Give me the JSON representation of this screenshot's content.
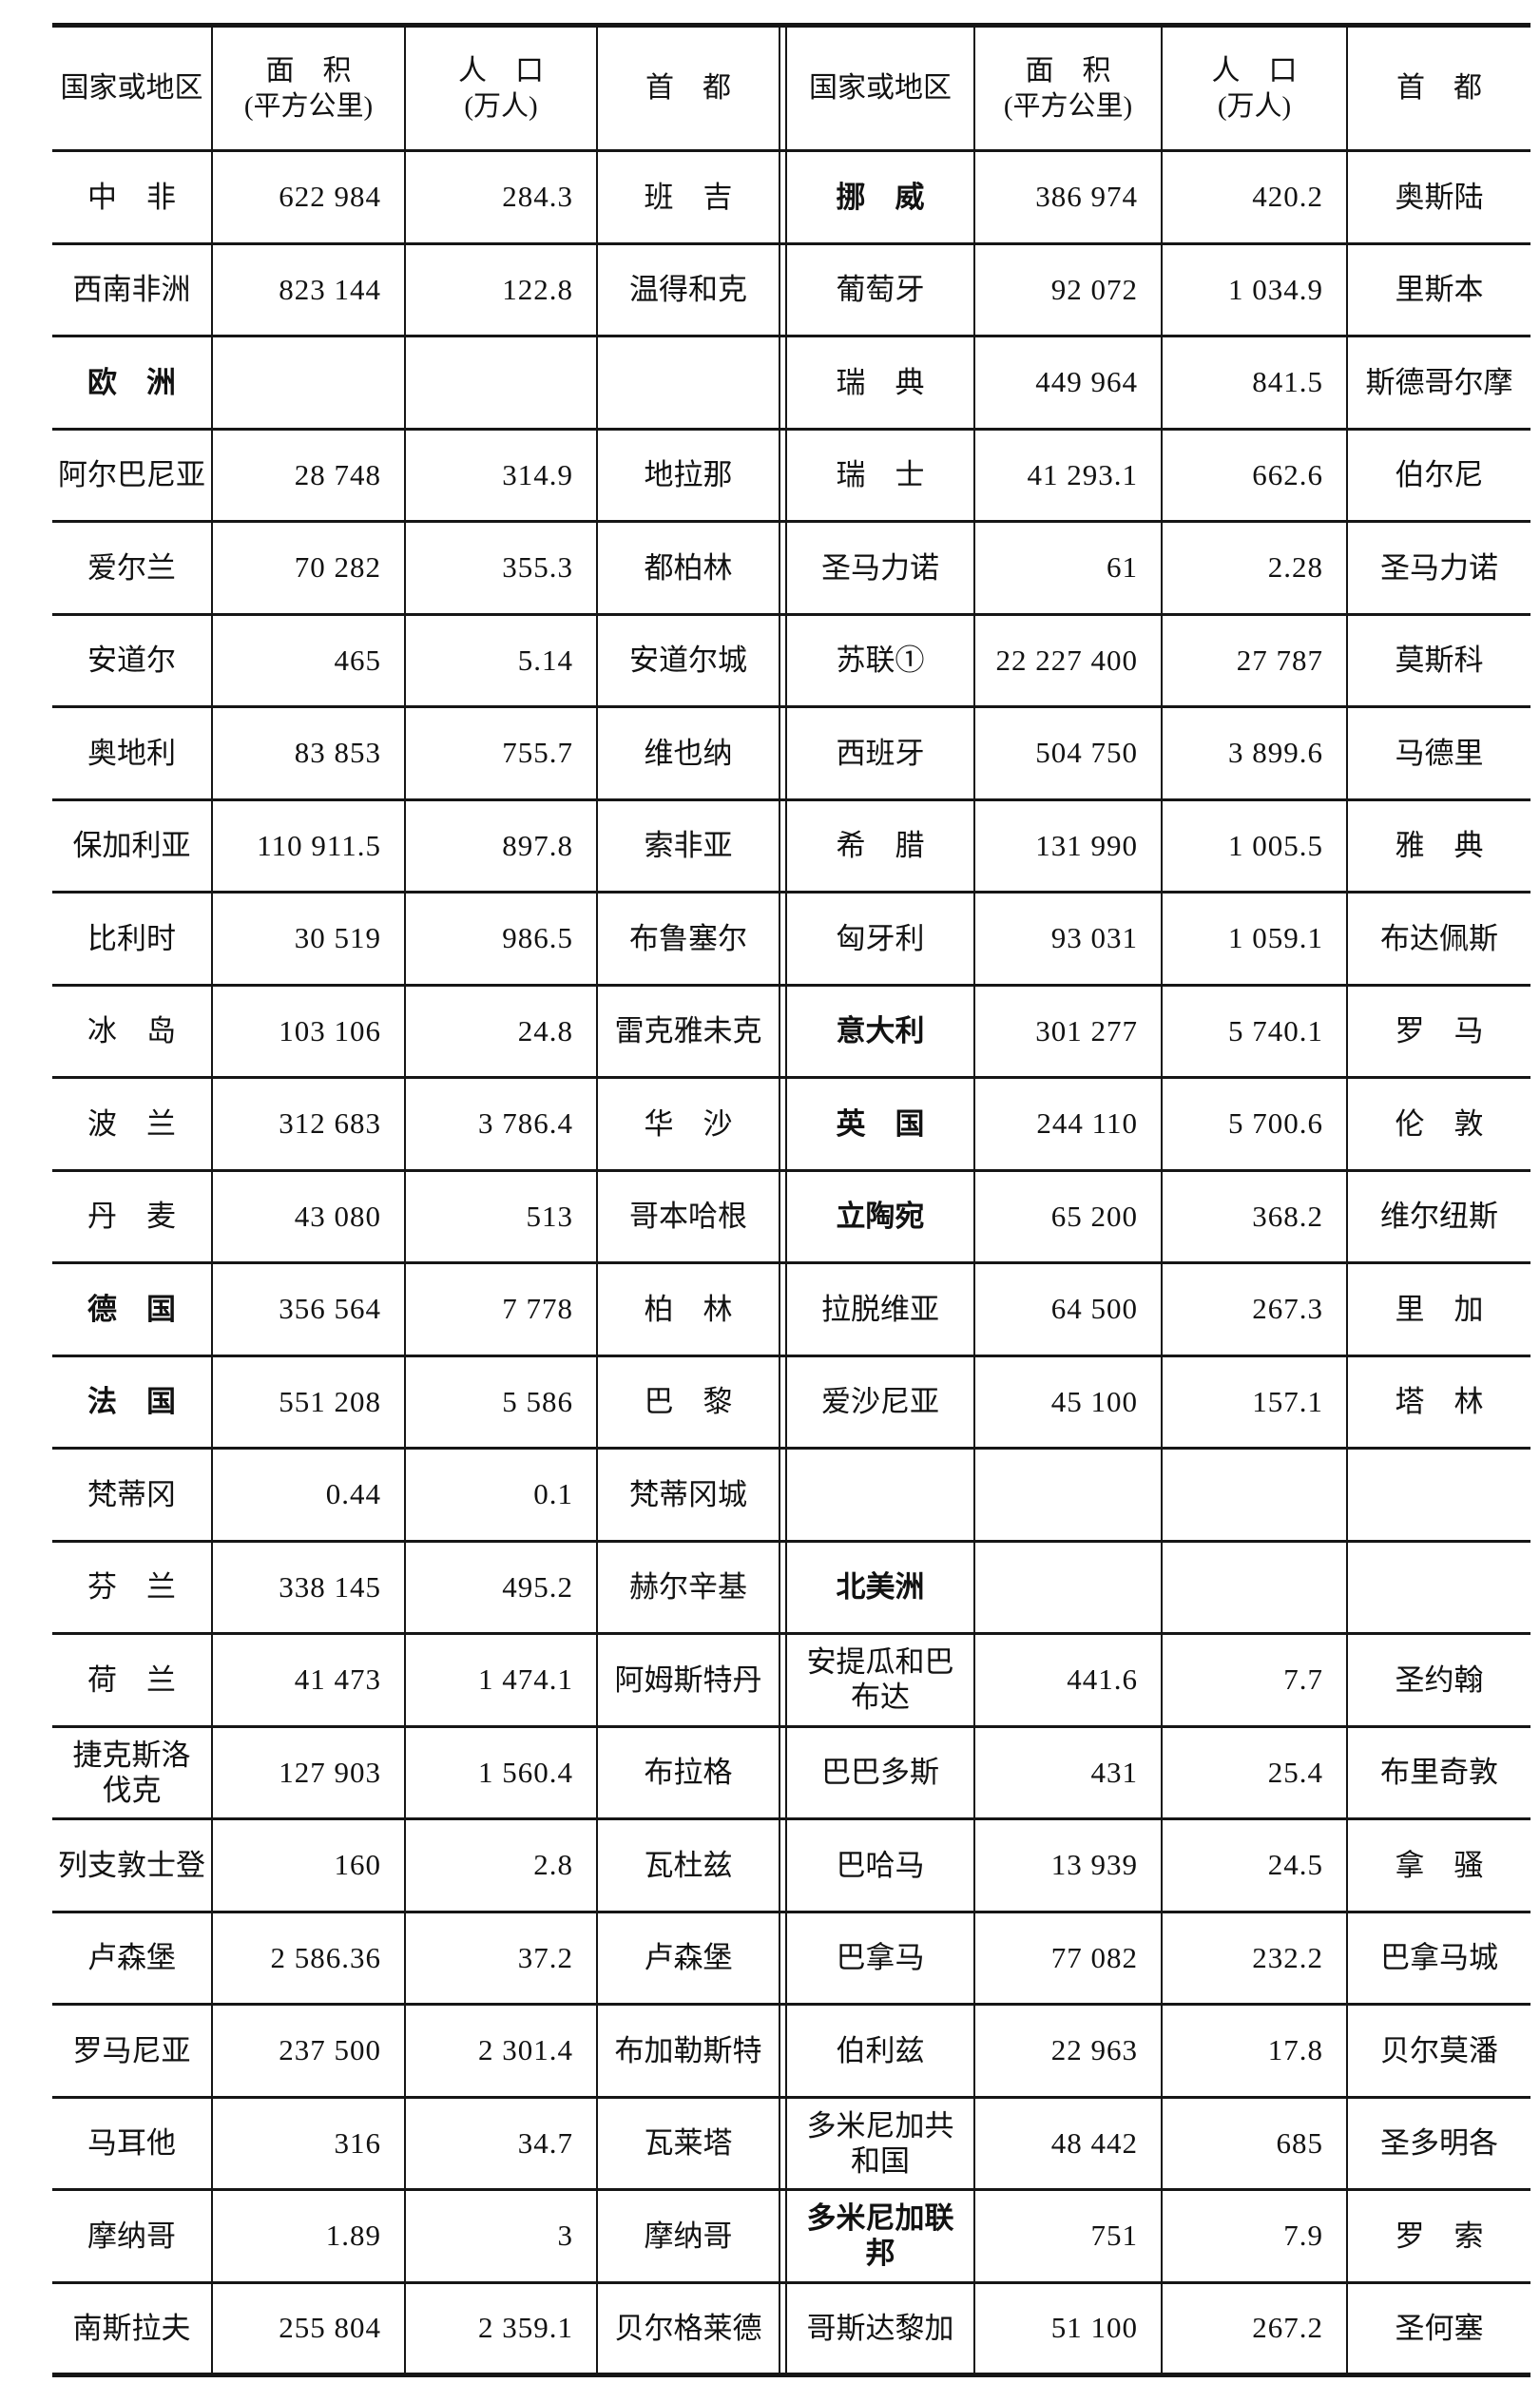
{
  "table": {
    "header": {
      "country": "国家或地区",
      "area_line1": "面　积",
      "area_line2": "(平方公里)",
      "pop_line1": "人　口",
      "pop_line2": "(万人)",
      "capital": "首　都"
    },
    "left_rows": [
      {
        "name": "中　非",
        "area": "622 984",
        "pop": "284.3",
        "capital": "班　吉",
        "bold": false
      },
      {
        "name": "西南非洲",
        "area": "823 144",
        "pop": "122.8",
        "capital": "温得和克",
        "bold": false
      },
      {
        "name": "欧　洲",
        "area": "",
        "pop": "",
        "capital": "",
        "bold": true
      },
      {
        "name": "阿尔巴尼亚",
        "area": "28 748",
        "pop": "314.9",
        "capital": "地拉那",
        "bold": false
      },
      {
        "name": "爱尔兰",
        "area": "70 282",
        "pop": "355.3",
        "capital": "都柏林",
        "bold": false
      },
      {
        "name": "安道尔",
        "area": "465",
        "pop": "5.14",
        "capital": "安道尔城",
        "bold": false
      },
      {
        "name": "奥地利",
        "area": "83 853",
        "pop": "755.7",
        "capital": "维也纳",
        "bold": false
      },
      {
        "name": "保加利亚",
        "area": "110 911.5",
        "pop": "897.8",
        "capital": "索非亚",
        "bold": false
      },
      {
        "name": "比利时",
        "area": "30 519",
        "pop": "986.5",
        "capital": "布鲁塞尔",
        "bold": false
      },
      {
        "name": "冰　岛",
        "area": "103 106",
        "pop": "24.8",
        "capital": "雷克雅未克",
        "bold": false
      },
      {
        "name": "波　兰",
        "area": "312 683",
        "pop": "3 786.4",
        "capital": "华　沙",
        "bold": false
      },
      {
        "name": "丹　麦",
        "area": "43 080",
        "pop": "513",
        "capital": "哥本哈根",
        "bold": false
      },
      {
        "name": "德　国",
        "area": "356 564",
        "pop": "7 778",
        "capital": "柏　林",
        "bold": true
      },
      {
        "name": "法　国",
        "area": "551 208",
        "pop": "5 586",
        "capital": "巴　黎",
        "bold": true
      },
      {
        "name": "梵蒂冈",
        "area": "0.44",
        "pop": "0.1",
        "capital": "梵蒂冈城",
        "bold": false
      },
      {
        "name": "芬　兰",
        "area": "338 145",
        "pop": "495.2",
        "capital": "赫尔辛基",
        "bold": false
      },
      {
        "name": "荷　兰",
        "area": "41 473",
        "pop": "1 474.1",
        "capital": "阿姆斯特丹",
        "bold": false
      },
      {
        "name": "捷克斯洛\n伐克",
        "area": "127 903",
        "pop": "1 560.4",
        "capital": "布拉格",
        "bold": false
      },
      {
        "name": "列支敦士登",
        "area": "160",
        "pop": "2.8",
        "capital": "瓦杜兹",
        "bold": false
      },
      {
        "name": "卢森堡",
        "area": "2 586.36",
        "pop": "37.2",
        "capital": "卢森堡",
        "bold": false
      },
      {
        "name": "罗马尼亚",
        "area": "237 500",
        "pop": "2 301.4",
        "capital": "布加勒斯特",
        "bold": false
      },
      {
        "name": "马耳他",
        "area": "316",
        "pop": "34.7",
        "capital": "瓦莱塔",
        "bold": false
      },
      {
        "name": "摩纳哥",
        "area": "1.89",
        "pop": "3",
        "capital": "摩纳哥",
        "bold": false
      },
      {
        "name": "南斯拉夫",
        "area": "255 804",
        "pop": "2 359.1",
        "capital": "贝尔格莱德",
        "bold": false
      }
    ],
    "right_rows": [
      {
        "name": "挪　威",
        "area": "386 974",
        "pop": "420.2",
        "capital": "奥斯陆",
        "bold": true
      },
      {
        "name": "葡萄牙",
        "area": "92 072",
        "pop": "1 034.9",
        "capital": "里斯本",
        "bold": false
      },
      {
        "name": "瑞　典",
        "area": "449 964",
        "pop": "841.5",
        "capital": "斯德哥尔摩",
        "bold": false
      },
      {
        "name": "瑞　士",
        "area": "41 293.1",
        "pop": "662.6",
        "capital": "伯尔尼",
        "bold": false
      },
      {
        "name": "圣马力诺",
        "area": "61",
        "pop": "2.28",
        "capital": "圣马力诺",
        "bold": false
      },
      {
        "name": "苏联①",
        "area": "22 227 400",
        "pop": "27 787",
        "capital": "莫斯科",
        "bold": false
      },
      {
        "name": "西班牙",
        "area": "504 750",
        "pop": "3 899.6",
        "capital": "马德里",
        "bold": false
      },
      {
        "name": "希　腊",
        "area": "131 990",
        "pop": "1 005.5",
        "capital": "雅　典",
        "bold": false
      },
      {
        "name": "匈牙利",
        "area": "93 031",
        "pop": "1 059.1",
        "capital": "布达佩斯",
        "bold": false
      },
      {
        "name": "意大利",
        "area": "301 277",
        "pop": "5 740.1",
        "capital": "罗　马",
        "bold": true
      },
      {
        "name": "英　国",
        "area": "244 110",
        "pop": "5 700.6",
        "capital": "伦　敦",
        "bold": true
      },
      {
        "name": "立陶宛",
        "area": "65 200",
        "pop": "368.2",
        "capital": "维尔纽斯",
        "bold": true
      },
      {
        "name": "拉脱维亚",
        "area": "64 500",
        "pop": "267.3",
        "capital": "里　加",
        "bold": false
      },
      {
        "name": "爱沙尼亚",
        "area": "45 100",
        "pop": "157.1",
        "capital": "塔　林",
        "bold": false
      },
      {
        "name": "",
        "area": "",
        "pop": "",
        "capital": "",
        "bold": false
      },
      {
        "name": "北美洲",
        "area": "",
        "pop": "",
        "capital": "",
        "bold": true
      },
      {
        "name": "安提瓜和巴\n布达",
        "area": "441.6",
        "pop": "7.7",
        "capital": "圣约翰",
        "bold": false
      },
      {
        "name": "巴巴多斯",
        "area": "431",
        "pop": "25.4",
        "capital": "布里奇敦",
        "bold": false
      },
      {
        "name": "巴哈马",
        "area": "13 939",
        "pop": "24.5",
        "capital": "拿　骚",
        "bold": false
      },
      {
        "name": "巴拿马",
        "area": "77 082",
        "pop": "232.2",
        "capital": "巴拿马城",
        "bold": false
      },
      {
        "name": "伯利兹",
        "area": "22 963",
        "pop": "17.8",
        "capital": "贝尔莫潘",
        "bold": false
      },
      {
        "name": "多米尼加共\n和国",
        "area": "48 442",
        "pop": "685",
        "capital": "圣多明各",
        "bold": false
      },
      {
        "name": "多米尼加联\n邦",
        "area": "751",
        "pop": "7.9",
        "capital": "罗　索",
        "bold": true
      },
      {
        "name": "哥斯达黎加",
        "area": "51 100",
        "pop": "267.2",
        "capital": "圣何塞",
        "bold": false
      }
    ]
  }
}
